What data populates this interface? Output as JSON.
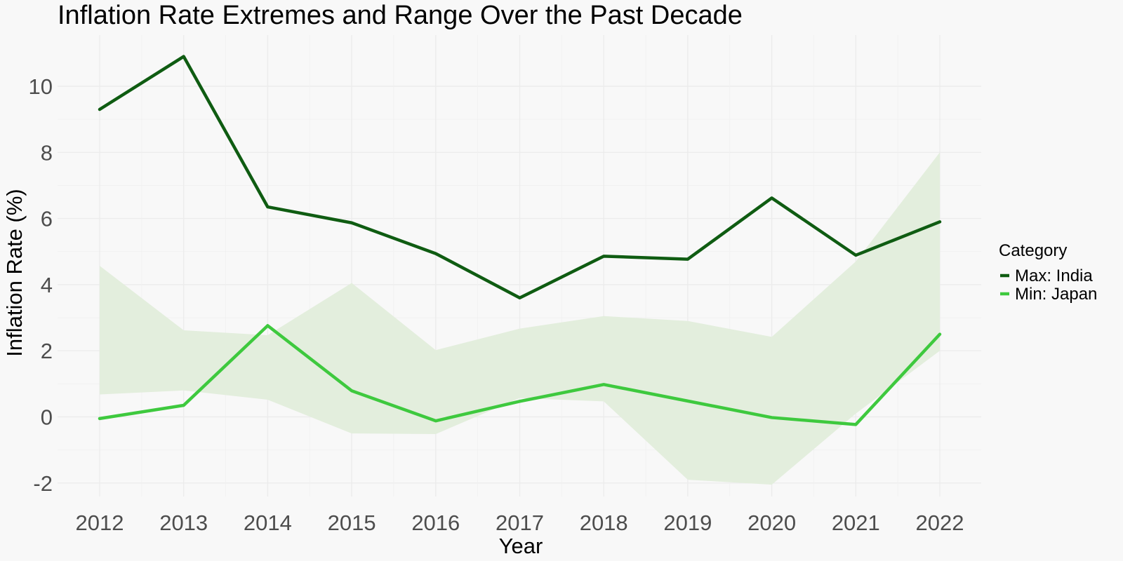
{
  "chart_data": {
    "type": "line",
    "title": "Inflation Rate Extremes and Range Over the Past Decade",
    "xlabel": "Year",
    "ylabel": "Inflation Rate (%)",
    "x": [
      "2012",
      "2013",
      "2014",
      "2015",
      "2016",
      "2017",
      "2018",
      "2019",
      "2020",
      "2021",
      "2022"
    ],
    "series": [
      {
        "name": "Max: India",
        "values": [
          9.3,
          10.9,
          6.35,
          5.87,
          4.94,
          3.6,
          4.86,
          4.77,
          6.62,
          4.89,
          5.9
        ],
        "color": "#0f5c12"
      },
      {
        "name": "Min: Japan",
        "values": [
          -0.05,
          0.35,
          2.76,
          0.79,
          -0.12,
          0.47,
          0.98,
          0.48,
          -0.02,
          -0.23,
          2.5
        ],
        "color": "#3ec93e"
      }
    ],
    "range_band": {
      "lower": [
        0.68,
        0.8,
        0.52,
        -0.5,
        -0.52,
        0.57,
        0.47,
        -1.9,
        -2.05,
        0.1,
        2.0
      ],
      "upper": [
        4.57,
        2.62,
        2.47,
        4.05,
        2.02,
        2.67,
        3.05,
        2.9,
        2.42,
        4.7,
        8.0
      ],
      "color": "#e3eedd"
    },
    "y_ticks": [
      -2,
      0,
      2,
      4,
      6,
      8,
      10
    ],
    "ylim": [
      -2.6,
      11.3
    ],
    "grid": true,
    "legend": {
      "title": "Category",
      "position": "right"
    }
  }
}
